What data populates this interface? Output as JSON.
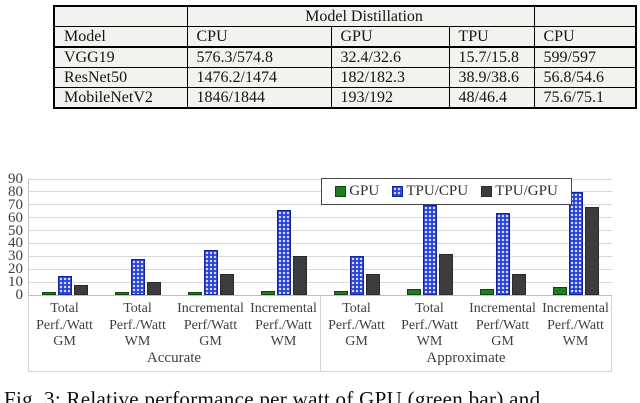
{
  "table": {
    "span_header": "Model Distillation",
    "columns": [
      "Model",
      "CPU",
      "GPU",
      "TPU",
      "CPU"
    ],
    "rows": [
      [
        "VGG19",
        "576.3/574.8",
        "32.4/32.6",
        "15.7/15.8",
        "599/597"
      ],
      [
        "ResNet50",
        "1476.2/1474",
        "182/182.3",
        "38.9/38.6",
        "56.8/54.6"
      ],
      [
        "MobileNetV2",
        "1846/1844",
        "193/192",
        "48/46.4",
        "75.6/75.1"
      ]
    ]
  },
  "chart_data": {
    "type": "bar",
    "title": "",
    "xlabel": "",
    "ylabel": "",
    "ylim": [
      0,
      90
    ],
    "yticks": [
      0,
      10,
      20,
      30,
      40,
      50,
      60,
      70,
      80,
      90
    ],
    "grid": true,
    "legend_position": "top-inside",
    "gridline_color": "#d9d9d9",
    "axis_color": "#bfbfbf",
    "box_color": "#d4d4d4",
    "label_color": "#3f3f3f",
    "categories": [
      [
        "Total",
        "Perf./Watt",
        "GM"
      ],
      [
        "Total",
        "Perf./Watt",
        "WM"
      ],
      [
        "Incremental",
        "Perf/Watt",
        "GM"
      ],
      [
        "Incremental",
        "Perf./Watt",
        "WM"
      ],
      [
        "Total",
        "Perf./Watt",
        "GM"
      ],
      [
        "Total",
        "Perf./Watt",
        "WM"
      ],
      [
        "Incremental",
        "Perf/Watt",
        "GM"
      ],
      [
        "Incremental",
        "Perf./Watt",
        "WM"
      ]
    ],
    "group_labels": [
      "Accurate",
      "Approximate"
    ],
    "series": [
      {
        "name": "GPU",
        "color": "#1e7d1e",
        "border": "#0c470c",
        "values": [
          2,
          2,
          2,
          3,
          3,
          5,
          5,
          6
        ]
      },
      {
        "name": "TPU/CPU",
        "color": "#2640d9",
        "border": "#16239e",
        "pattern": "dots",
        "dot_color": "#cfdcff",
        "values": [
          15,
          28,
          35,
          66,
          30,
          70,
          64,
          80
        ]
      },
      {
        "name": "TPU/GPU",
        "color": "#3c3c3c",
        "border": "#2a2a2a",
        "values": [
          8,
          10,
          16,
          30,
          16,
          32,
          16,
          68
        ]
      }
    ]
  },
  "caption": {
    "text": "Fig. 3: Relative performance per watt of GPU (green bar) and"
  }
}
